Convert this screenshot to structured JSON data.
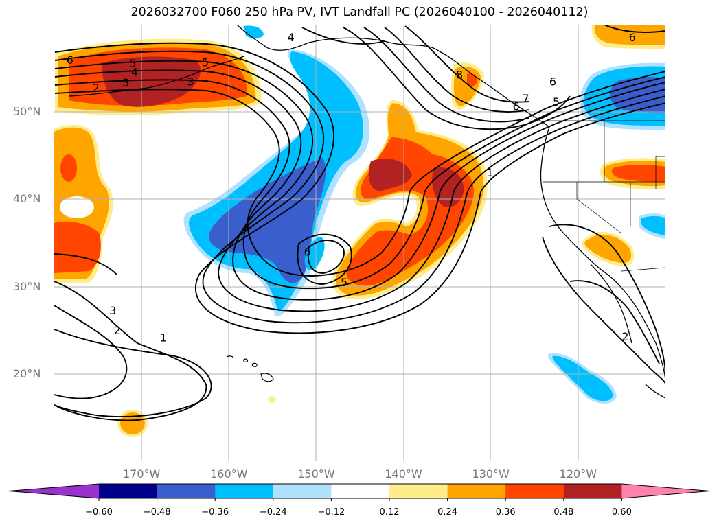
{
  "title": "2026032700 F060 250 hPa PV, IVT Landfall PC (2026040100 - 2026040112)",
  "lat_labels": [
    {
      "text": "50°N",
      "lat": 50
    },
    {
      "text": "40°N",
      "lat": 40
    },
    {
      "text": "30°N",
      "lat": 30
    },
    {
      "text": "20°N",
      "lat": 20
    }
  ],
  "lon_labels": [
    {
      "text": "170°W",
      "lon": -170
    },
    {
      "text": "160°W",
      "lon": -160
    },
    {
      "text": "150°W",
      "lon": -150
    },
    {
      "text": "140°W",
      "lon": -140
    },
    {
      "text": "130°W",
      "lon": -130
    },
    {
      "text": "120°W",
      "lon": -120
    }
  ],
  "extent": {
    "lon_min": -180,
    "lon_max": -110,
    "lat_min": 10,
    "lat_max": 60
  },
  "colorbar": {
    "colors": [
      "#9932cc",
      "#00008b",
      "#3a5fcd",
      "#00bfff",
      "#b0e2ff",
      "#ffffff",
      "#ffec8b",
      "#ffa500",
      "#ff4500",
      "#b22222",
      "#ff82ab"
    ],
    "labels": [
      "−0.60",
      "−0.48",
      "−0.36",
      "−0.24",
      "−0.12",
      "0.12",
      "0.24",
      "0.36",
      "0.48",
      "0.60"
    ]
  },
  "contour_labels": [
    {
      "text": "6",
      "lon": -178.2,
      "lat": 56.0
    },
    {
      "text": "5",
      "lon": -171.0,
      "lat": 55.6
    },
    {
      "text": "4",
      "lon": -170.8,
      "lat": 54.6
    },
    {
      "text": "3",
      "lon": -171.8,
      "lat": 53.4
    },
    {
      "text": "2",
      "lon": -175.2,
      "lat": 52.8
    },
    {
      "text": "5",
      "lon": -162.7,
      "lat": 55.7
    },
    {
      "text": "3",
      "lon": -164.4,
      "lat": 53.5
    },
    {
      "text": "4",
      "lon": -152.9,
      "lat": 58.6
    },
    {
      "text": "8",
      "lon": -133.6,
      "lat": 54.3
    },
    {
      "text": "7",
      "lon": -126.0,
      "lat": 51.6
    },
    {
      "text": "6",
      "lon": -127.1,
      "lat": 50.7
    },
    {
      "text": "5",
      "lon": -122.5,
      "lat": 51.2
    },
    {
      "text": "6",
      "lon": -122.9,
      "lat": 53.5
    },
    {
      "text": "1",
      "lon": -130.1,
      "lat": 43.1
    },
    {
      "text": "6",
      "lon": -151.0,
      "lat": 34.0
    },
    {
      "text": "5",
      "lon": -146.8,
      "lat": 30.5
    },
    {
      "text": "3",
      "lon": -173.3,
      "lat": 27.3
    },
    {
      "text": "2",
      "lon": -172.8,
      "lat": 25.0
    },
    {
      "text": "1",
      "lon": -167.5,
      "lat": 24.2
    },
    {
      "text": "2",
      "lon": -114.6,
      "lat": 24.3
    },
    {
      "text": "6",
      "lon": -113.8,
      "lat": 58.6
    }
  ]
}
